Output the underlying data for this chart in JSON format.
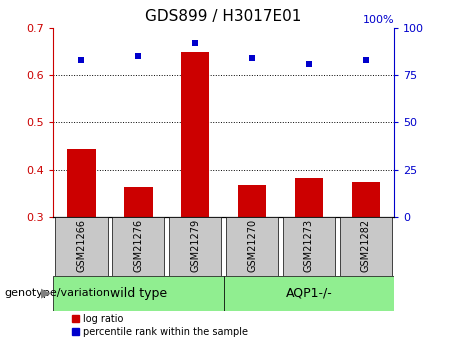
{
  "title": "GDS899 / H3017E01",
  "samples": [
    "GSM21266",
    "GSM21276",
    "GSM21279",
    "GSM21270",
    "GSM21273",
    "GSM21282"
  ],
  "log_ratio": [
    0.445,
    0.365,
    0.648,
    0.368,
    0.384,
    0.375
  ],
  "percentile_rank": [
    83,
    85,
    92,
    84,
    81,
    83
  ],
  "ylim_left": [
    0.3,
    0.7
  ],
  "ylim_right": [
    0,
    100
  ],
  "yticks_left": [
    0.3,
    0.4,
    0.5,
    0.6,
    0.7
  ],
  "yticks_right": [
    0,
    25,
    50,
    75,
    100
  ],
  "bar_color": "#cc0000",
  "scatter_color": "#0000cc",
  "bar_width": 0.5,
  "label_box_color": "#c8c8c8",
  "group_box_color": "#90ee90",
  "genotype_label": "genotype/variation",
  "wt_label": "wild type",
  "aqp_label": "AQP1-/-",
  "legend_items": [
    {
      "label": "log ratio",
      "color": "#cc0000"
    },
    {
      "label": "percentile rank within the sample",
      "color": "#0000cc"
    }
  ],
  "title_fontsize": 11,
  "tick_fontsize": 8,
  "label_fontsize": 7,
  "group_fontsize": 9,
  "genotype_fontsize": 8,
  "hgrid_vals": [
    0.4,
    0.5,
    0.6
  ],
  "hundred_pct_label": "100%"
}
